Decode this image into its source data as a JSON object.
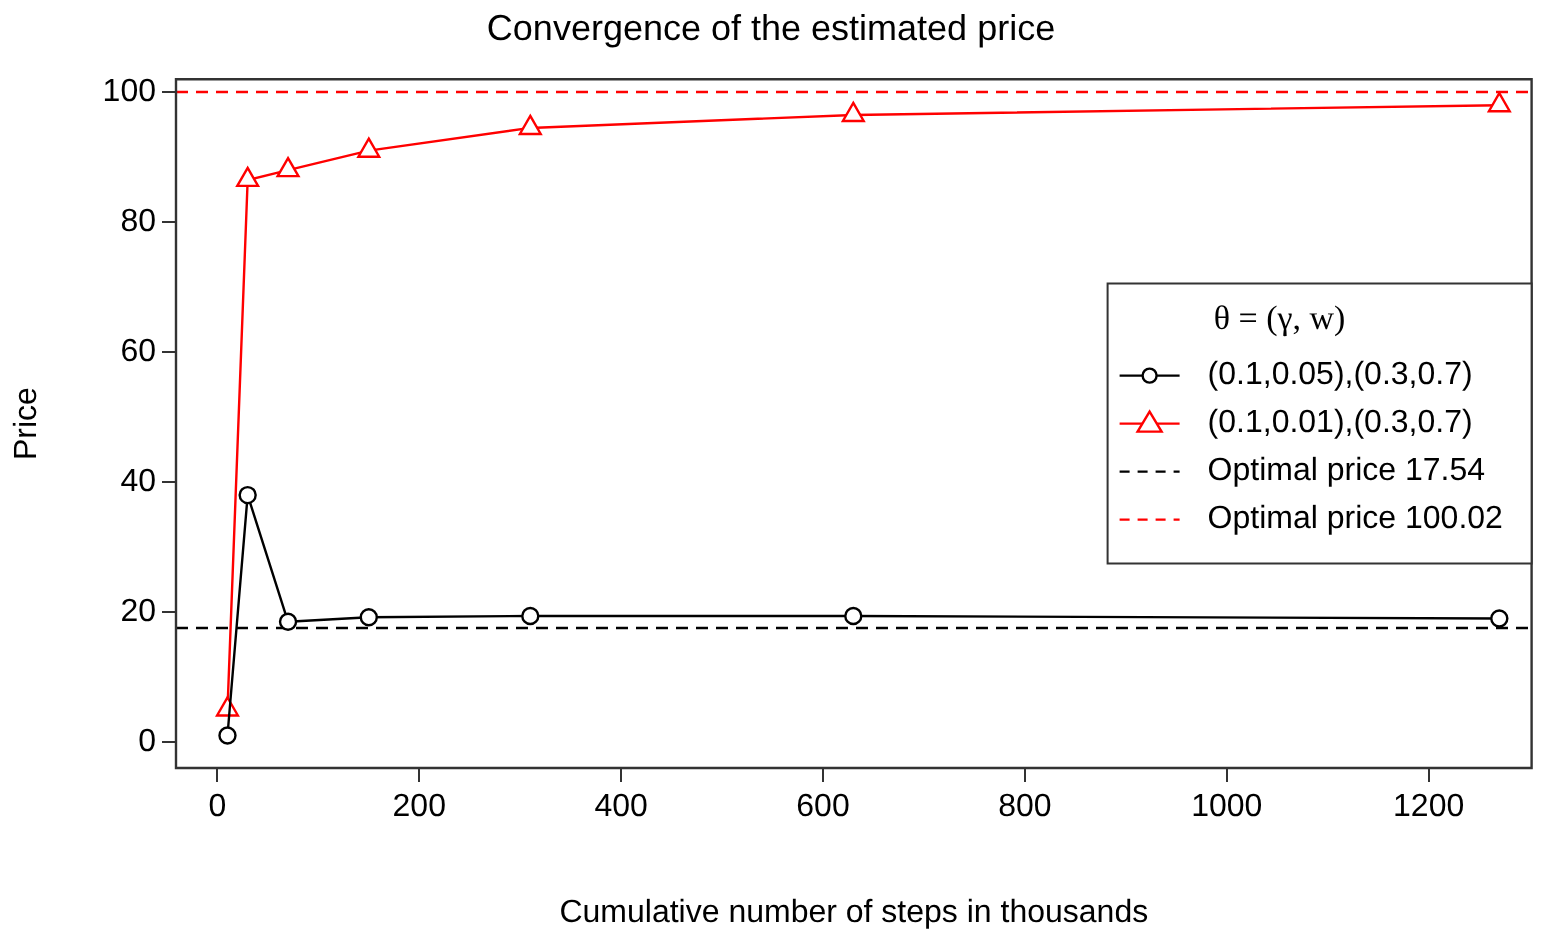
{
  "chart_data": {
    "type": "line",
    "title": "Convergence of the estimated price",
    "xlabel": "Cumulative number of steps in thousands",
    "ylabel": "Price",
    "legend_title": "θ = (γ, w)",
    "x": [
      10,
      30,
      70,
      150,
      310,
      630,
      1270
    ],
    "series": [
      {
        "name": "(0.1,0.05),(0.3,0.7)",
        "color": "#000000",
        "marker": "circle",
        "values": [
          1,
          38,
          18.5,
          19.2,
          19.4,
          19.4,
          19
        ]
      },
      {
        "name": "(0.1,0.01),(0.3,0.7)",
        "color": "#ff0000",
        "marker": "triangle",
        "values": [
          5,
          86.5,
          88,
          91,
          94.5,
          96.5,
          98
        ]
      }
    ],
    "ref_lines": [
      {
        "axis": "y",
        "value": 17.54,
        "label": "Optimal price 17.54",
        "color": "#000000",
        "line_style": "dashed"
      },
      {
        "axis": "y",
        "value": 100.02,
        "label": "Optimal price 100.02",
        "color": "#ff0000",
        "line_style": "dashed"
      }
    ],
    "xlim": [
      -41,
      1302
    ],
    "ylim": [
      -4,
      102
    ],
    "xticks": [
      0,
      200,
      400,
      600,
      800,
      1000,
      1200
    ],
    "yticks": [
      0,
      20,
      40,
      60,
      80,
      100
    ],
    "grid": false,
    "legend": "right",
    "line_style": "solid"
  }
}
